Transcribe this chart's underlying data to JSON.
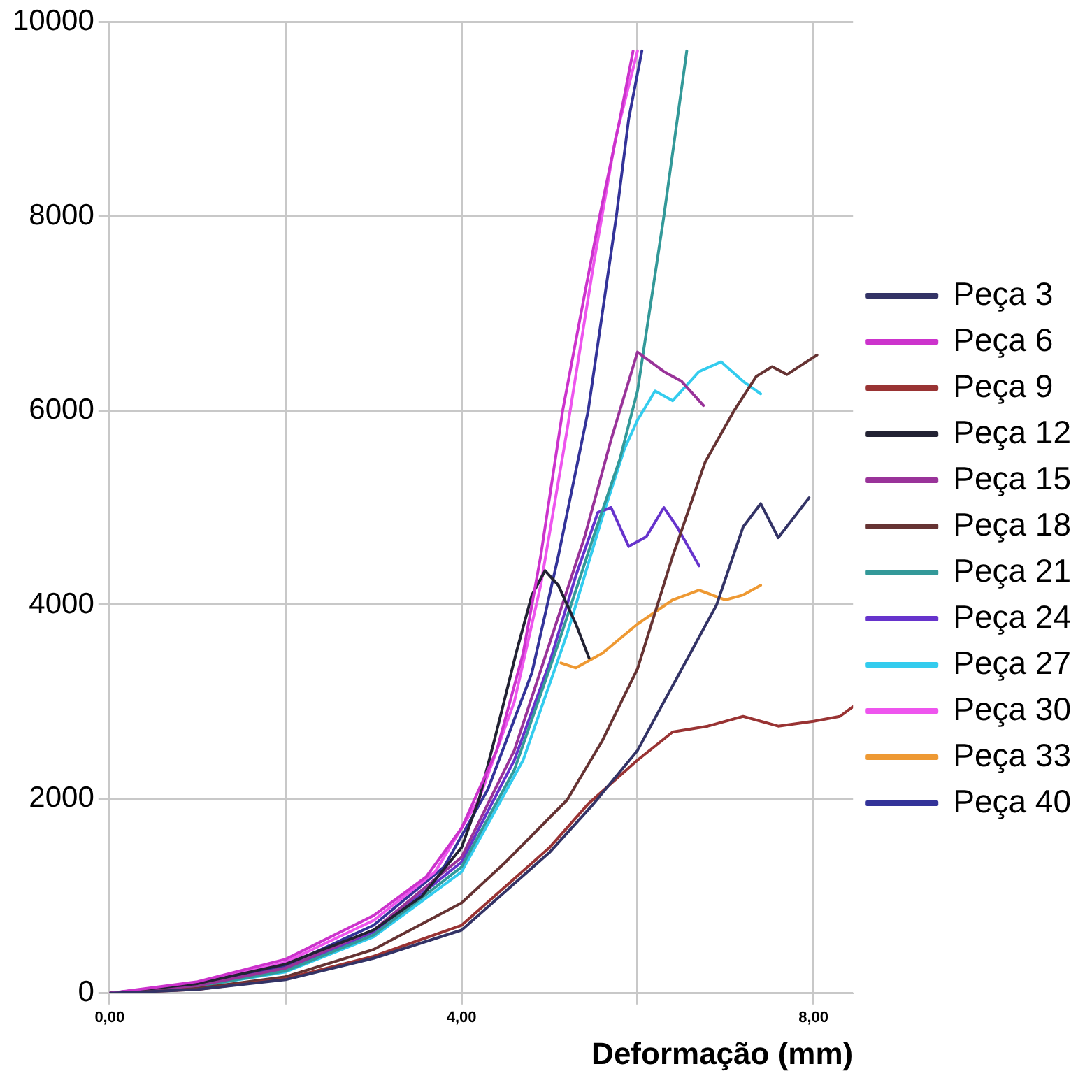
{
  "chart_data": {
    "type": "line",
    "xlabel": "Deformação (mm)",
    "xlim": [
      0,
      8.45
    ],
    "xticks": [
      {
        "value": 0,
        "label": "0,00"
      },
      {
        "value": 2,
        "label": null
      },
      {
        "value": 4,
        "label": "4,00"
      },
      {
        "value": 6,
        "label": null
      },
      {
        "value": 8,
        "label": "8,00"
      }
    ],
    "ylim": [
      0,
      10000
    ],
    "yticks": [
      0,
      2000,
      4000,
      6000,
      8000,
      10000
    ],
    "grid": true,
    "legend": "right",
    "marker": "none",
    "line_style": "solid",
    "series": [
      {
        "name": "Peça 3",
        "color": "#333366",
        "x": [
          0,
          1,
          2,
          3,
          4,
          5,
          5.5,
          6,
          6.3,
          6.6,
          6.9,
          7.2,
          7.4,
          7.6,
          7.95
        ],
        "values": [
          0,
          40,
          140,
          360,
          650,
          1450,
          1950,
          2500,
          3000,
          3500,
          4000,
          4800,
          5040,
          4690,
          5100
        ]
      },
      {
        "name": "Peça 6",
        "color": "#cc33cc",
        "x": [
          0,
          1,
          2,
          3,
          3.6,
          4,
          4.4,
          4.7,
          4.9,
          5.15,
          5.4,
          5.57,
          5.8,
          5.95
        ],
        "values": [
          0,
          120,
          350,
          800,
          1200,
          1700,
          2500,
          3500,
          4500,
          6000,
          7200,
          8000,
          9000,
          9700
        ]
      },
      {
        "name": "Peça 9",
        "color": "#993333",
        "x": [
          0,
          1,
          2,
          3,
          4,
          5,
          5.44,
          6,
          6.4,
          6.8,
          7.2,
          7.6,
          8,
          8.3,
          8.45
        ],
        "values": [
          0,
          40,
          150,
          380,
          700,
          1500,
          1950,
          2400,
          2690,
          2750,
          2850,
          2750,
          2800,
          2850,
          2950
        ]
      },
      {
        "name": "Peça 12",
        "color": "#222233",
        "x": [
          0,
          1,
          2,
          2.28,
          3,
          3.55,
          4,
          4.2,
          4.4,
          4.62,
          4.8,
          4.95,
          5.1,
          5.3,
          5.45
        ],
        "values": [
          0,
          100,
          300,
          400,
          650,
          1000,
          1500,
          2000,
          2700,
          3500,
          4100,
          4350,
          4200,
          3800,
          3450
        ]
      },
      {
        "name": "Peça 15",
        "color": "#993399",
        "x": [
          0,
          1,
          2,
          3,
          4,
          4.6,
          5,
          5.4,
          5.7,
          6,
          6.3,
          6.5,
          6.75
        ],
        "values": [
          0,
          80,
          260,
          650,
          1400,
          2500,
          3600,
          4700,
          5700,
          6600,
          6400,
          6300,
          6050
        ]
      },
      {
        "name": "Peça 18",
        "color": "#663333",
        "x": [
          0,
          1,
          2,
          3,
          4,
          4.5,
          5.2,
          5.6,
          6,
          6.4,
          6.77,
          7.1,
          7.35,
          7.53,
          7.7,
          8.04
        ],
        "values": [
          0,
          50,
          170,
          450,
          930,
          1350,
          1990,
          2600,
          3340,
          4500,
          5470,
          6000,
          6350,
          6450,
          6370,
          6570
        ]
      },
      {
        "name": "Peça 21",
        "color": "#339999",
        "x": [
          0,
          1,
          2,
          3,
          4,
          4.6,
          5.1,
          5.5,
          5.8,
          6,
          6.3,
          6.56
        ],
        "values": [
          0,
          70,
          230,
          600,
          1300,
          2300,
          3600,
          4700,
          5500,
          6200,
          8000,
          9700
        ]
      },
      {
        "name": "Peça 24",
        "color": "#6633cc",
        "x": [
          0,
          1,
          2,
          3,
          4,
          4.6,
          5,
          5.3,
          5.55,
          5.7,
          5.9,
          6.1,
          6.3,
          6.45,
          6.7
        ],
        "values": [
          0,
          80,
          250,
          630,
          1350,
          2400,
          3400,
          4300,
          4950,
          5000,
          4600,
          4700,
          5000,
          4800,
          4400
        ]
      },
      {
        "name": "Peça 27",
        "color": "#33ccee",
        "x": [
          0,
          1,
          2,
          3,
          4,
          4.7,
          5.2,
          5.6,
          5.85,
          6,
          6.2,
          6.4,
          6.7,
          6.95,
          7.2,
          7.4
        ],
        "values": [
          0,
          70,
          220,
          580,
          1250,
          2400,
          3700,
          4900,
          5600,
          5900,
          6200,
          6100,
          6400,
          6500,
          6300,
          6170
        ]
      },
      {
        "name": "Peça 30",
        "color": "#ee55ee",
        "x": [
          0,
          1,
          2,
          3,
          3.7,
          4.2,
          4.6,
          4.9,
          5.2,
          5.5,
          5.75,
          6
        ],
        "values": [
          0,
          100,
          320,
          750,
          1250,
          2000,
          3000,
          4200,
          5800,
          7500,
          8800,
          9700
        ]
      },
      {
        "name": "Peça 33",
        "color": "#ee9933",
        "x": [
          5.13,
          5.3,
          5.6,
          6,
          6.4,
          6.7,
          7,
          7.2,
          7.4
        ],
        "values": [
          3400,
          3350,
          3500,
          3800,
          4050,
          4150,
          4050,
          4100,
          4200
        ]
      },
      {
        "name": "Peça 40",
        "color": "#333399",
        "x": [
          0,
          1,
          2,
          3,
          3.8,
          4.3,
          4.8,
          5.1,
          5.44,
          5.76,
          5.9,
          6.05
        ],
        "values": [
          0,
          90,
          280,
          700,
          1300,
          2100,
          3300,
          4500,
          6000,
          8000,
          9000,
          9700
        ]
      }
    ]
  }
}
